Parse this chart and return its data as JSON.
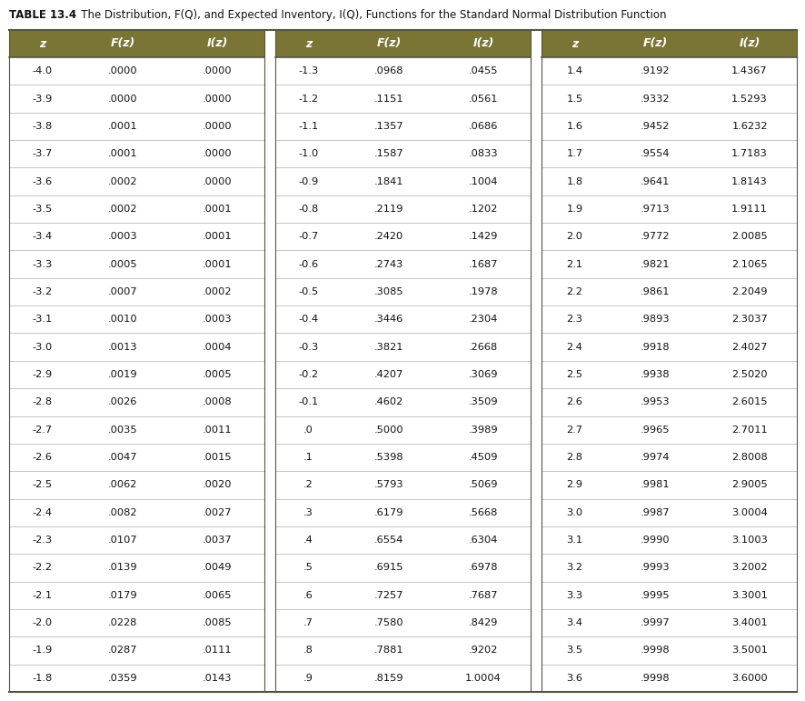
{
  "title_bold": "TABLE 13.4",
  "title_rest": "   The Distribution, Φ(Q), and Expected Inventory, I(Q), Functions for the Standard Normal Distribution Function",
  "title_full": "TABLE 13.4   The Distribution, F(Q), and Expected Inventory, I(Q), Functions for the Standard Normal Distribution Function",
  "header_bg": "#7a7535",
  "header_text_color": "#ffffff",
  "body_bg": "#ffffff",
  "row_line_color": "#bbbbbb",
  "outer_line_color": "#555544",
  "text_color": "#111111",
  "col1": {
    "headers": [
      "z",
      "F(z)",
      "I(z)"
    ],
    "rows": [
      [
        "-4.0",
        ".0000",
        ".0000"
      ],
      [
        "-3.9",
        ".0000",
        ".0000"
      ],
      [
        "-3.8",
        ".0001",
        ".0000"
      ],
      [
        "-3.7",
        ".0001",
        ".0000"
      ],
      [
        "-3.6",
        ".0002",
        ".0000"
      ],
      [
        "-3.5",
        ".0002",
        ".0001"
      ],
      [
        "-3.4",
        ".0003",
        ".0001"
      ],
      [
        "-3.3",
        ".0005",
        ".0001"
      ],
      [
        "-3.2",
        ".0007",
        ".0002"
      ],
      [
        "-3.1",
        ".0010",
        ".0003"
      ],
      [
        "-3.0",
        ".0013",
        ".0004"
      ],
      [
        "-2.9",
        ".0019",
        ".0005"
      ],
      [
        "-2.8",
        ".0026",
        ".0008"
      ],
      [
        "-2.7",
        ".0035",
        ".0011"
      ],
      [
        "-2.6",
        ".0047",
        ".0015"
      ],
      [
        "-2.5",
        ".0062",
        ".0020"
      ],
      [
        "-2.4",
        ".0082",
        ".0027"
      ],
      [
        "-2.3",
        ".0107",
        ".0037"
      ],
      [
        "-2.2",
        ".0139",
        ".0049"
      ],
      [
        "-2.1",
        ".0179",
        ".0065"
      ],
      [
        "-2.0",
        ".0228",
        ".0085"
      ],
      [
        "-1.9",
        ".0287",
        ".0111"
      ],
      [
        "-1.8",
        ".0359",
        ".0143"
      ]
    ]
  },
  "col2": {
    "headers": [
      "z",
      "F(z)",
      "I(z)"
    ],
    "rows": [
      [
        "-1.3",
        ".0968",
        ".0455"
      ],
      [
        "-1.2",
        ".1151",
        ".0561"
      ],
      [
        "-1.1",
        ".1357",
        ".0686"
      ],
      [
        "-1.0",
        ".1587",
        ".0833"
      ],
      [
        "-0.9",
        ".1841",
        ".1004"
      ],
      [
        "-0.8",
        ".2119",
        ".1202"
      ],
      [
        "-0.7",
        ".2420",
        ".1429"
      ],
      [
        "-0.6",
        ".2743",
        ".1687"
      ],
      [
        "-0.5",
        ".3085",
        ".1978"
      ],
      [
        "-0.4",
        ".3446",
        ".2304"
      ],
      [
        "-0.3",
        ".3821",
        ".2668"
      ],
      [
        "-0.2",
        ".4207",
        ".3069"
      ],
      [
        "-0.1",
        ".4602",
        ".3509"
      ],
      [
        ".0",
        ".5000",
        ".3989"
      ],
      [
        ".1",
        ".5398",
        ".4509"
      ],
      [
        ".2",
        ".5793",
        ".5069"
      ],
      [
        ".3",
        ".6179",
        ".5668"
      ],
      [
        ".4",
        ".6554",
        ".6304"
      ],
      [
        ".5",
        ".6915",
        ".6978"
      ],
      [
        ".6",
        ".7257",
        ".7687"
      ],
      [
        ".7",
        ".7580",
        ".8429"
      ],
      [
        ".8",
        ".7881",
        ".9202"
      ],
      [
        ".9",
        ".8159",
        "1.0004"
      ]
    ]
  },
  "col3": {
    "headers": [
      "z",
      "F(z)",
      "I(z)"
    ],
    "rows": [
      [
        "1.4",
        ".9192",
        "1.4367"
      ],
      [
        "1.5",
        ".9332",
        "1.5293"
      ],
      [
        "1.6",
        ".9452",
        "1.6232"
      ],
      [
        "1.7",
        ".9554",
        "1.7183"
      ],
      [
        "1.8",
        ".9641",
        "1.8143"
      ],
      [
        "1.9",
        ".9713",
        "1.9111"
      ],
      [
        "2.0",
        ".9772",
        "2.0085"
      ],
      [
        "2.1",
        ".9821",
        "2.1065"
      ],
      [
        "2.2",
        ".9861",
        "2.2049"
      ],
      [
        "2.3",
        ".9893",
        "2.3037"
      ],
      [
        "2.4",
        ".9918",
        "2.4027"
      ],
      [
        "2.5",
        ".9938",
        "2.5020"
      ],
      [
        "2.6",
        ".9953",
        "2.6015"
      ],
      [
        "2.7",
        ".9965",
        "2.7011"
      ],
      [
        "2.8",
        ".9974",
        "2.8008"
      ],
      [
        "2.9",
        ".9981",
        "2.9005"
      ],
      [
        "3.0",
        ".9987",
        "3.0004"
      ],
      [
        "3.1",
        ".9990",
        "3.1003"
      ],
      [
        "3.2",
        ".9993",
        "3.2002"
      ],
      [
        "3.3",
        ".9995",
        "3.3001"
      ],
      [
        "3.4",
        ".9997",
        "3.4001"
      ],
      [
        "3.5",
        ".9998",
        "3.5001"
      ],
      [
        "3.6",
        ".9998",
        "3.6000"
      ]
    ]
  }
}
